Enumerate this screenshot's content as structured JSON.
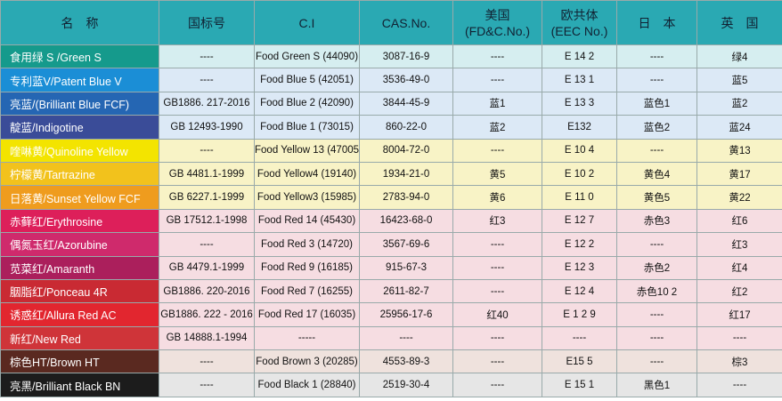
{
  "table": {
    "header": [
      "名　称",
      "国标号",
      "C.I",
      "CAS.No.",
      "美国\n(FD&C.No.)",
      "欧共体\n(EEC No.)",
      "日　本",
      "英　国"
    ],
    "rows": [
      [
        "食用绿 S /Green S",
        "----",
        "Food Green S (44090)",
        "3087-16-9",
        "----",
        "E 14 2",
        "----",
        "绿4"
      ],
      [
        "专利蓝V/Patent Blue V",
        "----",
        "Food Blue 5 (42051)",
        "3536-49-0",
        "----",
        "E 13 1",
        "----",
        "蓝5"
      ],
      [
        "亮蓝/(Brilliant Blue FCF)",
        "GB1886. 217-2016",
        "Food Blue 2 (42090)",
        "3844-45-9",
        "蓝1",
        "E 13 3",
        "蓝色1",
        "蓝2"
      ],
      [
        "靛蓝/Indigotine",
        "GB 12493-1990",
        "Food Blue 1 (73015)",
        "860-22-0",
        "蓝2",
        "E132",
        "蓝色2",
        "蓝24"
      ],
      [
        "喹啉黄/Quinoline Yellow",
        "----",
        "Food Yellow 13 (47005)",
        "8004-72-0",
        "----",
        "E 10 4",
        "----",
        "黄13"
      ],
      [
        "柠檬黄/Tartrazine",
        "GB 4481.1-1999",
        "Food Yellow4 (19140)",
        "1934-21-0",
        "黄5",
        "E 10 2",
        "黄色4",
        "黄17"
      ],
      [
        "日落黄/Sunset Yellow FCF",
        "GB 6227.1-1999",
        "Food Yellow3 (15985)",
        "2783-94-0",
        "黄6",
        "E 11 0",
        "黄色5",
        "黄22"
      ],
      [
        "赤藓红/Erythrosine",
        "GB 17512.1-1998",
        "Food Red 14 (45430)",
        "16423-68-0",
        "红3",
        "E 12 7",
        "赤色3",
        "红6"
      ],
      [
        "偶氮玉红/Azorubine",
        "----",
        "Food Red 3 (14720)",
        "3567-69-6",
        "----",
        "E 12 2",
        "----",
        "红3"
      ],
      [
        "苋菜红/Amaranth",
        "GB 4479.1-1999",
        "Food Red 9 (16185)",
        "915-67-3",
        "----",
        "E 12 3",
        "赤色2",
        "红4"
      ],
      [
        "胭脂红/Ponceau 4R",
        "GB1886. 220-2016",
        "Food Red 7 (16255)",
        "2611-82-7",
        "----",
        "E 12 4",
        "赤色10 2",
        "红2"
      ],
      [
        "诱惑红/Allura Red AC",
        "GB1886. 222 - 2016",
        "Food Red 17 (16035)",
        "25956-17-6",
        "红40",
        "E 1 2 9",
        "----",
        "红17"
      ],
      [
        "新红/New Red",
        "GB 14888.1-1994",
        "-----",
        "----",
        "----",
        "----",
        "----",
        "----"
      ],
      [
        "棕色HT/Brown HT",
        "----",
        "Food Brown 3 (20285)",
        "4553-89-3",
        "----",
        "E15 5",
        "----",
        "棕3"
      ],
      [
        "亮黑/Brilliant Black BN",
        "----",
        "Food Black 1 (28840)",
        "2519-30-4",
        "----",
        "E 15 1",
        "黑色1",
        "----"
      ]
    ]
  }
}
